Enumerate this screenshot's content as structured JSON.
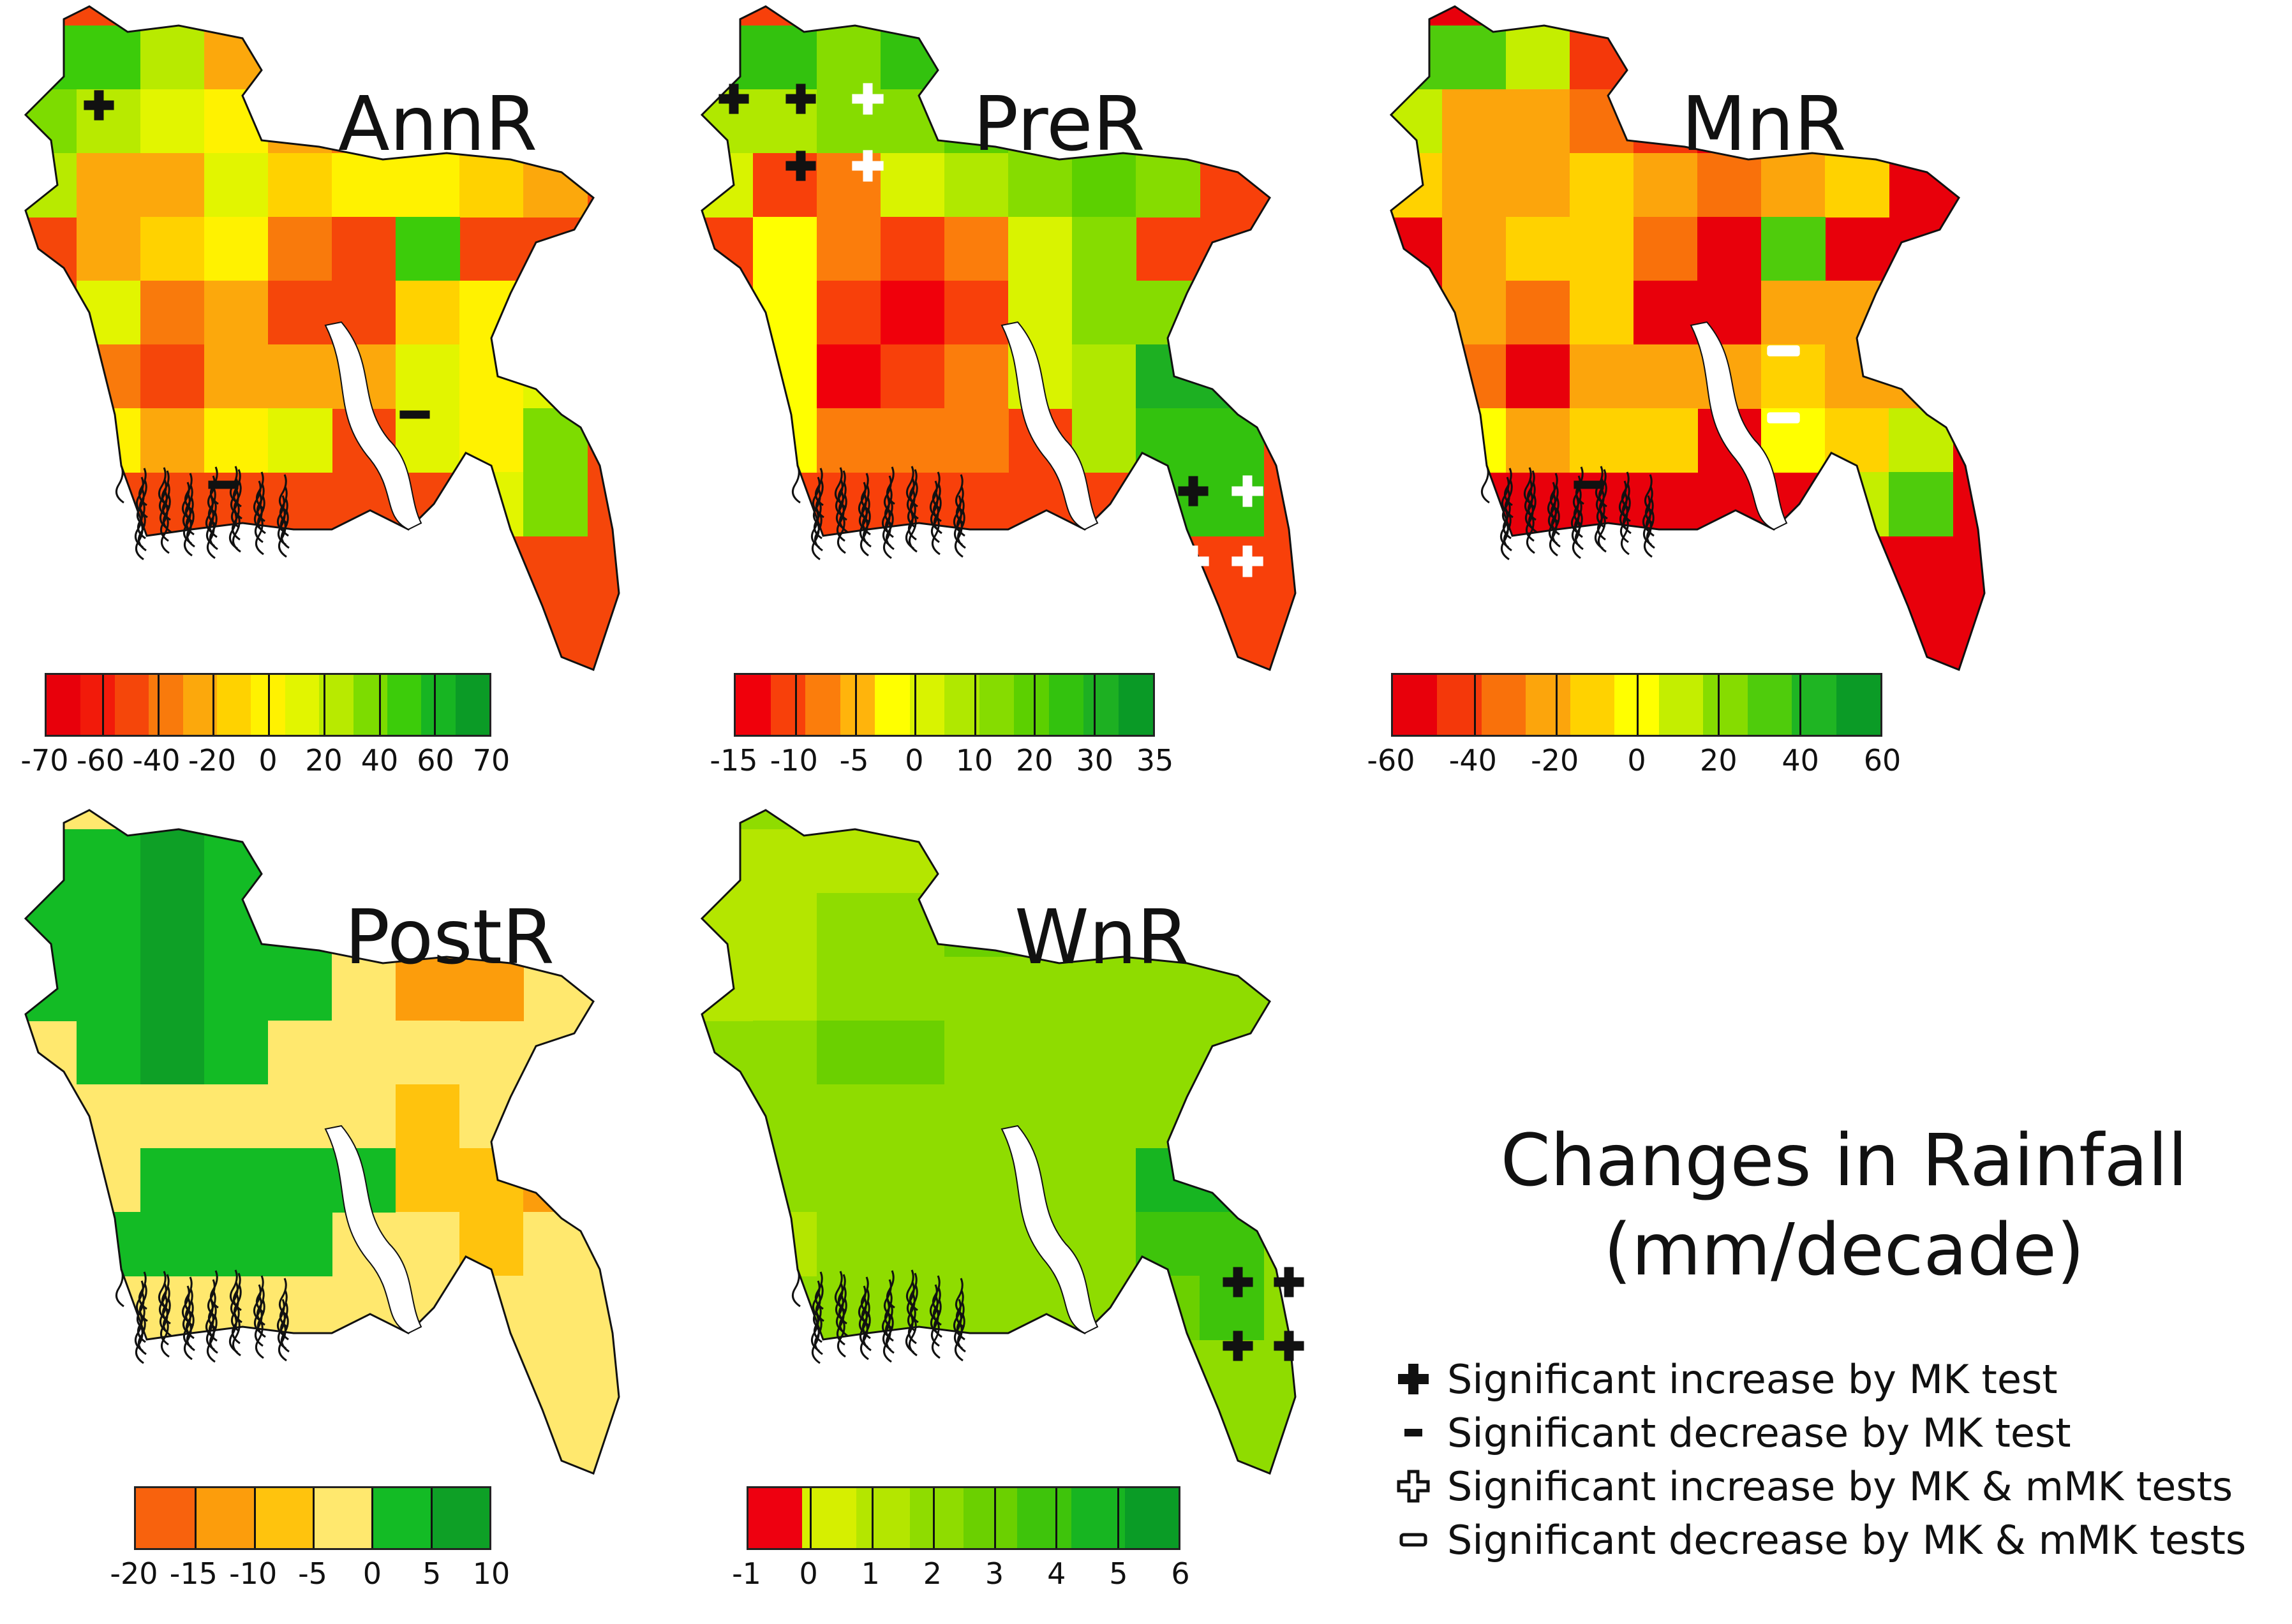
{
  "main_title_line1": "Changes in Rainfall",
  "main_title_line2": "(mm/decade)",
  "panels": {
    "annr": {
      "title": "AnnR",
      "labels": [
        "-70",
        "-60",
        "-40",
        "-20",
        "0",
        "20",
        "40",
        "60",
        "70"
      ],
      "colors": [
        "#e8000b",
        "#f21a0a",
        "#f5460a",
        "#f97a0c",
        "#fca80c",
        "#ffd200",
        "#fff200",
        "#e2f500",
        "#b8ea00",
        "#7ddc00",
        "#3ccc0a",
        "#17b522",
        "#0b9b26"
      ]
    },
    "prer": {
      "title": "PreR",
      "labels": [
        "-15",
        "-10",
        "-5",
        "0",
        "10",
        "20",
        "30",
        "35"
      ],
      "colors": [
        "#f0000b",
        "#f8400a",
        "#fb7d0c",
        "#ffb40c",
        "#ffff00",
        "#d9f300",
        "#b0e800",
        "#86dc00",
        "#5cd000",
        "#33c20e",
        "#1db022",
        "#0a9a26"
      ]
    },
    "mnr": {
      "title": "MnR",
      "labels": [
        "-60",
        "-40",
        "-20",
        "0",
        "20",
        "40",
        "60"
      ],
      "colors": [
        "#e8000b",
        "#f4380a",
        "#f9710b",
        "#fca50c",
        "#ffd200",
        "#ffff00",
        "#c4ee00",
        "#86dc00",
        "#4fcc0c",
        "#1fb523",
        "#0b9b26"
      ]
    },
    "postr": {
      "title": "PostR",
      "labels": [
        "-20",
        "-15",
        "-10",
        "-5",
        "0",
        "5",
        "10"
      ],
      "colors": [
        "#f8620d",
        "#fc9d0c",
        "#ffc30d",
        "#ffe86e",
        "#13bb25",
        "#0ea026"
      ]
    },
    "wnr": {
      "title": "WnR",
      "labels": [
        "-1",
        "0",
        "1",
        "2",
        "3",
        "4",
        "5",
        "6"
      ],
      "colors": [
        "#ee0010",
        "#d6ef00",
        "#b4e600",
        "#8fdc00",
        "#6bd000",
        "#3ec40b",
        "#17b521",
        "#0a9c26"
      ]
    }
  },
  "legend": [
    {
      "symbol": "plus-filled",
      "text": "Significant increase by MK test"
    },
    {
      "symbol": "minus-filled",
      "text": "Significant decrease by MK test"
    },
    {
      "symbol": "plus-hollow",
      "text": "Significant increase by MK & mMK tests"
    },
    {
      "symbol": "minus-hollow",
      "text": "Significant decrease by MK & mMK tests"
    }
  ],
  "grids": {
    "annr": [
      [
        "#3ccc0a",
        "#3ccc0a",
        "#b8ea00",
        "#fca80c",
        "",
        "",
        "",
        "",
        ""
      ],
      [
        "#7ddc00",
        "#b8ea00",
        "#e2f500",
        "#fff200",
        "#fca80c",
        "#f97a0c",
        "#ffd200",
        "#fca80c",
        ""
      ],
      [
        "#b8ea00",
        "#fca80c",
        "#fca80c",
        "#e2f500",
        "#ffd200",
        "#fff200",
        "#fff200",
        "#ffd200",
        "#fca80c"
      ],
      [
        "",
        "#fca80c",
        "#ffd200",
        "#fff200",
        "#f97a0c",
        "#f5460a",
        "#3ccc0a",
        "",
        ""
      ],
      [
        "",
        "#e2f500",
        "#f97a0c",
        "#fca80c",
        "#f5460a",
        "#f5460a",
        "#ffd200",
        "#fff200",
        "#e2f500"
      ],
      [
        "",
        "#f97a0c",
        "#f5460a",
        "#fca80c",
        "#fca80c",
        "#fca80c",
        "#e2f500",
        "#fff200",
        "#e2f500"
      ],
      [
        "",
        "#fff200",
        "#fca80c",
        "#fff200",
        "#e2f500",
        "",
        "#e2f500",
        "#fff200",
        "#7ddc00"
      ],
      [
        "",
        "",
        "",
        "",
        "",
        "",
        "",
        "#e2f500",
        "#7ddc00"
      ]
    ],
    "prer": [
      [
        "#33c20e",
        "#33c20e",
        "#86dc00",
        "#33c20e",
        "",
        "",
        "",
        "",
        ""
      ],
      [
        "#b0e800",
        "#b0e800",
        "#86dc00",
        "#86dc00",
        "#5cd000",
        "#86dc00",
        "#86dc00",
        "#86dc00",
        ""
      ],
      [
        "#d9f300",
        "#f8400a",
        "#fb7d0c",
        "#d9f300",
        "#b0e800",
        "#86dc00",
        "#5cd000",
        "#86dc00",
        ""
      ],
      [
        "",
        "#ffff00",
        "#fb7d0c",
        "#f8400a",
        "#fb7d0c",
        "#d9f300",
        "#86dc00",
        "",
        ""
      ],
      [
        "",
        "#ffff00",
        "#f8400a",
        "#f0000b",
        "#f8400a",
        "#d9f300",
        "#86dc00",
        "#86dc00",
        "#86dc00"
      ],
      [
        "",
        "#ffff00",
        "#f0000b",
        "#f8400a",
        "#fb7d0c",
        "#d9f300",
        "#b0e800",
        "#1db022",
        "#1db022"
      ],
      [
        "",
        "#ffff00",
        "#fb7d0c",
        "#fb7d0c",
        "#fb7d0c",
        "",
        "#b0e800",
        "#33c20e",
        "#33c20e"
      ],
      [
        "",
        "",
        "",
        "",
        "",
        "",
        "",
        "#33c20e",
        "#33c20e"
      ]
    ],
    "mnr": [
      [
        "#4fcc0c",
        "#4fcc0c",
        "#c4ee00",
        "#f4380a",
        "",
        "",
        "",
        "",
        ""
      ],
      [
        "#c4ee00",
        "#fca50c",
        "#fca50c",
        "#f9710b",
        "#f4380a",
        "#e8000b",
        "#fca50c",
        "#fca50c",
        ""
      ],
      [
        "#ffd200",
        "#fca50c",
        "#fca50c",
        "#ffd200",
        "#fca50c",
        "#f9710b",
        "#fca50c",
        "#ffd200",
        ""
      ],
      [
        "",
        "#fca50c",
        "#ffd200",
        "#ffd200",
        "#f9710b",
        "#e8000b",
        "#4fcc0c",
        "",
        ""
      ],
      [
        "",
        "#fca50c",
        "#f9710b",
        "#ffd200",
        "#e8000b",
        "#e8000b",
        "#fca50c",
        "#fca50c",
        "#f9710b"
      ],
      [
        "",
        "#f9710b",
        "#e8000b",
        "#fca50c",
        "#fca50c",
        "#fca50c",
        "#ffd200",
        "#fca50c",
        "#fca50c"
      ],
      [
        "",
        "#ffff00",
        "#fca50c",
        "#ffd200",
        "#ffd200",
        "",
        "#ffff00",
        "#ffd200",
        "#c4ee00"
      ],
      [
        "",
        "",
        "",
        "",
        "",
        "",
        "",
        "#c4ee00",
        "#4fcc0c"
      ]
    ],
    "postr": [
      [
        "#13bb25",
        "#13bb25",
        "#0ea026",
        "#13bb25",
        "",
        "",
        "",
        "",
        ""
      ],
      [
        "#13bb25",
        "#13bb25",
        "#0ea026",
        "#13bb25",
        "#13bb25",
        "#ffe86e",
        "#fc9d0c",
        "#f8620d",
        ""
      ],
      [
        "#13bb25",
        "#13bb25",
        "#0ea026",
        "#13bb25",
        "#13bb25",
        "#ffe86e",
        "#fc9d0c",
        "#fc9d0c",
        ""
      ],
      [
        "",
        "#13bb25",
        "#0ea026",
        "#13bb25",
        "#ffe86e",
        "#ffe86e",
        "#ffe86e",
        "",
        ""
      ],
      [
        "",
        "#ffe86e",
        "#ffe86e",
        "#ffe86e",
        "#ffe86e",
        "#ffe86e",
        "#ffc30d",
        "#ffe86e",
        "#ffc30d"
      ],
      [
        "",
        "#ffe86e",
        "#13bb25",
        "#13bb25",
        "#13bb25",
        "#13bb25",
        "#ffc30d",
        "#ffc30d",
        "#fc9d0c"
      ],
      [
        "",
        "#13bb25",
        "#13bb25",
        "#13bb25",
        "#13bb25",
        "",
        "#ffe86e",
        "#ffc30d",
        "#ffe86e"
      ],
      [
        "",
        "",
        "",
        "",
        "",
        "",
        "",
        "#ffe86e",
        "#ffe86e"
      ]
    ],
    "wnr": [
      [
        "#b4e600",
        "#b4e600",
        "#b4e600",
        "#b4e600",
        "",
        "",
        "",
        "",
        ""
      ],
      [
        "#b4e600",
        "#b4e600",
        "#8fdc00",
        "#8fdc00",
        "#6bd000",
        "#6bd000",
        "#8fdc00",
        "#8fdc00",
        ""
      ],
      [
        "#b4e600",
        "#b4e600",
        "#8fdc00",
        "#8fdc00",
        "#8fdc00",
        "#8fdc00",
        "#8fdc00",
        "#8fdc00",
        ""
      ],
      [
        "",
        "#8fdc00",
        "#6bd000",
        "#6bd000",
        "#8fdc00",
        "#8fdc00",
        "#8fdc00",
        "",
        ""
      ],
      [
        "",
        "#8fdc00",
        "#8fdc00",
        "#8fdc00",
        "#8fdc00",
        "#8fdc00",
        "#8fdc00",
        "#8fdc00",
        "#17b521"
      ],
      [
        "",
        "#8fdc00",
        "#8fdc00",
        "#8fdc00",
        "#8fdc00",
        "#8fdc00",
        "#8fdc00",
        "#17b521",
        "#17b521"
      ],
      [
        "",
        "#b4e600",
        "#8fdc00",
        "#8fdc00",
        "#8fdc00",
        "",
        "#8fdc00",
        "#3ec40b",
        "#3ec40b"
      ],
      [
        "",
        "",
        "",
        "",
        "",
        "",
        "",
        "#6bd000",
        "#3ec40b"
      ]
    ]
  }
}
